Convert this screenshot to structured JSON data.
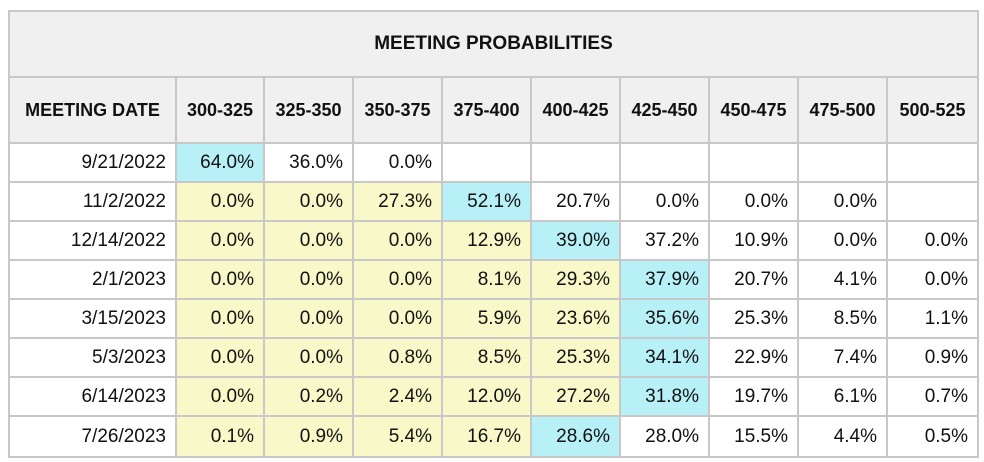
{
  "title": "MEETING PROBABILITIES",
  "header": {
    "meeting_date_label": "MEETING DATE",
    "ranges": [
      "300-325",
      "325-350",
      "350-375",
      "375-400",
      "400-425",
      "425-450",
      "450-475",
      "475-500",
      "500-525"
    ]
  },
  "colors": {
    "highlight_max": "#b8f0f8",
    "highlight_low": "#f8f8c9",
    "header_bg": "#f0f0f0",
    "grid": "#c8c8c8"
  },
  "rows": [
    {
      "date": "9/21/2022",
      "cells": [
        {
          "v": "64.0%",
          "s": "max"
        },
        {
          "v": "36.0%",
          "s": ""
        },
        {
          "v": "0.0%",
          "s": ""
        },
        {
          "v": "",
          "s": "empty"
        },
        {
          "v": "",
          "s": "empty"
        },
        {
          "v": "",
          "s": "empty"
        },
        {
          "v": "",
          "s": "empty"
        },
        {
          "v": "",
          "s": "empty"
        },
        {
          "v": "",
          "s": "empty"
        }
      ]
    },
    {
      "date": "11/2/2022",
      "cells": [
        {
          "v": "0.0%",
          "s": "low"
        },
        {
          "v": "0.0%",
          "s": "low"
        },
        {
          "v": "27.3%",
          "s": "low"
        },
        {
          "v": "52.1%",
          "s": "max"
        },
        {
          "v": "20.7%",
          "s": ""
        },
        {
          "v": "0.0%",
          "s": ""
        },
        {
          "v": "0.0%",
          "s": ""
        },
        {
          "v": "0.0%",
          "s": ""
        },
        {
          "v": "",
          "s": "empty"
        }
      ]
    },
    {
      "date": "12/14/2022",
      "cells": [
        {
          "v": "0.0%",
          "s": "low"
        },
        {
          "v": "0.0%",
          "s": "low"
        },
        {
          "v": "0.0%",
          "s": "low"
        },
        {
          "v": "12.9%",
          "s": "low"
        },
        {
          "v": "39.0%",
          "s": "max"
        },
        {
          "v": "37.2%",
          "s": ""
        },
        {
          "v": "10.9%",
          "s": ""
        },
        {
          "v": "0.0%",
          "s": ""
        },
        {
          "v": "0.0%",
          "s": ""
        }
      ]
    },
    {
      "date": "2/1/2023",
      "cells": [
        {
          "v": "0.0%",
          "s": "low"
        },
        {
          "v": "0.0%",
          "s": "low"
        },
        {
          "v": "0.0%",
          "s": "low"
        },
        {
          "v": "8.1%",
          "s": "low"
        },
        {
          "v": "29.3%",
          "s": "low"
        },
        {
          "v": "37.9%",
          "s": "max"
        },
        {
          "v": "20.7%",
          "s": ""
        },
        {
          "v": "4.1%",
          "s": ""
        },
        {
          "v": "0.0%",
          "s": ""
        }
      ]
    },
    {
      "date": "3/15/2023",
      "cells": [
        {
          "v": "0.0%",
          "s": "low"
        },
        {
          "v": "0.0%",
          "s": "low"
        },
        {
          "v": "0.0%",
          "s": "low"
        },
        {
          "v": "5.9%",
          "s": "low"
        },
        {
          "v": "23.6%",
          "s": "low"
        },
        {
          "v": "35.6%",
          "s": "max"
        },
        {
          "v": "25.3%",
          "s": ""
        },
        {
          "v": "8.5%",
          "s": ""
        },
        {
          "v": "1.1%",
          "s": ""
        }
      ]
    },
    {
      "date": "5/3/2023",
      "cells": [
        {
          "v": "0.0%",
          "s": "low"
        },
        {
          "v": "0.0%",
          "s": "low"
        },
        {
          "v": "0.8%",
          "s": "low"
        },
        {
          "v": "8.5%",
          "s": "low"
        },
        {
          "v": "25.3%",
          "s": "low"
        },
        {
          "v": "34.1%",
          "s": "max"
        },
        {
          "v": "22.9%",
          "s": ""
        },
        {
          "v": "7.4%",
          "s": ""
        },
        {
          "v": "0.9%",
          "s": ""
        }
      ]
    },
    {
      "date": "6/14/2023",
      "cells": [
        {
          "v": "0.0%",
          "s": "low"
        },
        {
          "v": "0.2%",
          "s": "low"
        },
        {
          "v": "2.4%",
          "s": "low"
        },
        {
          "v": "12.0%",
          "s": "low"
        },
        {
          "v": "27.2%",
          "s": "low"
        },
        {
          "v": "31.8%",
          "s": "max"
        },
        {
          "v": "19.7%",
          "s": ""
        },
        {
          "v": "6.1%",
          "s": ""
        },
        {
          "v": "0.7%",
          "s": ""
        }
      ]
    },
    {
      "date": "7/26/2023",
      "cells": [
        {
          "v": "0.1%",
          "s": "low"
        },
        {
          "v": "0.9%",
          "s": "low"
        },
        {
          "v": "5.4%",
          "s": "low"
        },
        {
          "v": "16.7%",
          "s": "low"
        },
        {
          "v": "28.6%",
          "s": "max"
        },
        {
          "v": "28.0%",
          "s": ""
        },
        {
          "v": "15.5%",
          "s": ""
        },
        {
          "v": "4.4%",
          "s": ""
        },
        {
          "v": "0.5%",
          "s": ""
        }
      ]
    }
  ]
}
